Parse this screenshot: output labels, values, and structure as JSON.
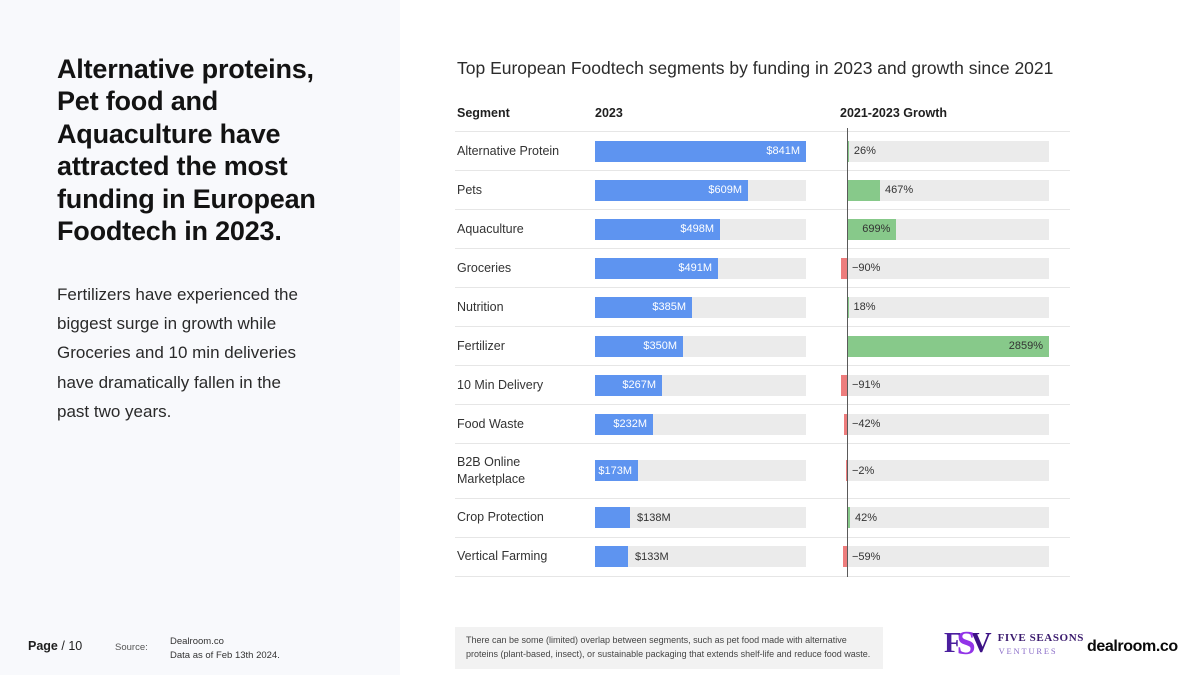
{
  "left_panel": {
    "headline": "Alternative proteins,\nPet food and\nAquaculture have\nattracted the most\nfunding in European\nFoodtech in 2023.",
    "body": "Fertilizers have experienced the\nbiggest surge in growth while\nGroceries and 10 min deliveries\nhave dramatically fallen in the\npast two years."
  },
  "footer": {
    "page_label": "Page",
    "page_number": "/ 10",
    "source_label": "Source:",
    "source_lines": "Dealroom.co\nData as of Feb 13th 2024.",
    "footnote": "There can be some (limited) overlap between segments, such as pet food made with alternative proteins (plant-based, insect), or sustainable packaging that extends shelf-life and reduce food waste.",
    "fsv_logo": {
      "letter_f": "F",
      "letter_s": "S",
      "letter_v": "V",
      "line1": "FIVE SEASONS",
      "line2": "VENTURES"
    },
    "dealroom_logo": "dealroom.co"
  },
  "chart": {
    "title": "Top European Foodtech segments by funding in 2023 and growth since 2021",
    "headers": {
      "segment": "Segment",
      "funding": "2023",
      "growth": "2021-2023 Growth"
    },
    "rows": [
      {
        "segment": "Alternative Protein",
        "funding": 841,
        "funding_label": "$841M",
        "funding_label_inside": true,
        "growth": 26,
        "growth_label": "26%",
        "growth_label_inside": false
      },
      {
        "segment": "Pets",
        "funding": 609,
        "funding_label": "$609M",
        "funding_label_inside": true,
        "growth": 467,
        "growth_label": "467%",
        "growth_label_inside": false
      },
      {
        "segment": "Aquaculture",
        "funding": 498,
        "funding_label": "$498M",
        "funding_label_inside": true,
        "growth": 699,
        "growth_label": "699%",
        "growth_label_inside": true
      },
      {
        "segment": "Groceries",
        "funding": 491,
        "funding_label": "$491M",
        "funding_label_inside": true,
        "growth": -90,
        "growth_label": "−90%",
        "growth_label_inside": false
      },
      {
        "segment": "Nutrition",
        "funding": 385,
        "funding_label": "$385M",
        "funding_label_inside": true,
        "growth": 18,
        "growth_label": "18%",
        "growth_label_inside": false
      },
      {
        "segment": "Fertilizer",
        "funding": 350,
        "funding_label": "$350M",
        "funding_label_inside": true,
        "growth": 2859,
        "growth_label": "2859%",
        "growth_label_inside": true
      },
      {
        "segment": "10 Min Delivery",
        "funding": 267,
        "funding_label": "$267M",
        "funding_label_inside": true,
        "growth": -91,
        "growth_label": "−91%",
        "growth_label_inside": false
      },
      {
        "segment": "Food Waste",
        "funding": 232,
        "funding_label": "$232M",
        "funding_label_inside": true,
        "growth": -42,
        "growth_label": "−42%",
        "growth_label_inside": false
      },
      {
        "segment": "B2B Online Marketplace",
        "funding": 173,
        "funding_label": "$173M",
        "funding_label_inside": true,
        "growth": -2,
        "growth_label": "−2%",
        "growth_label_inside": false
      },
      {
        "segment": "Crop Protection",
        "funding": 138,
        "funding_label": "$138M",
        "funding_label_inside": false,
        "growth": 42,
        "growth_label": "42%",
        "growth_label_inside": false
      },
      {
        "segment": "Vertical Farming",
        "funding": 133,
        "funding_label": "$133M",
        "funding_label_inside": false,
        "growth": -59,
        "growth_label": "−59%",
        "growth_label_inside": false
      }
    ],
    "funding_axis_max": 841,
    "growth_axis_max": 2859,
    "colors": {
      "funding_bar": "#5e94f0",
      "growth_positive": "#87c98a",
      "growth_negative": "#ed7d7d",
      "track": "#ebebeb",
      "baseline": "#5a5a5a"
    }
  },
  "chart_data": {
    "type": "bar",
    "title": "Top European Foodtech segments by funding in 2023 and growth since 2021",
    "categories": [
      "Alternative Protein",
      "Pets",
      "Aquaculture",
      "Groceries",
      "Nutrition",
      "Fertilizer",
      "10 Min Delivery",
      "Food Waste",
      "B2B Online Marketplace",
      "Crop Protection",
      "Vertical Farming"
    ],
    "series": [
      {
        "name": "2023 funding ($M)",
        "values": [
          841,
          609,
          498,
          491,
          385,
          350,
          267,
          232,
          173,
          138,
          133
        ]
      },
      {
        "name": "2021-2023 growth (%)",
        "values": [
          26,
          467,
          699,
          -90,
          18,
          2859,
          -91,
          -42,
          -2,
          42,
          -59
        ]
      }
    ],
    "xlabel": "",
    "ylabel": "",
    "funding_axis_range": [
      0,
      841
    ],
    "growth_axis_range": [
      0,
      2859
    ],
    "orientation": "horizontal",
    "grid": false,
    "legend_position": "none"
  }
}
